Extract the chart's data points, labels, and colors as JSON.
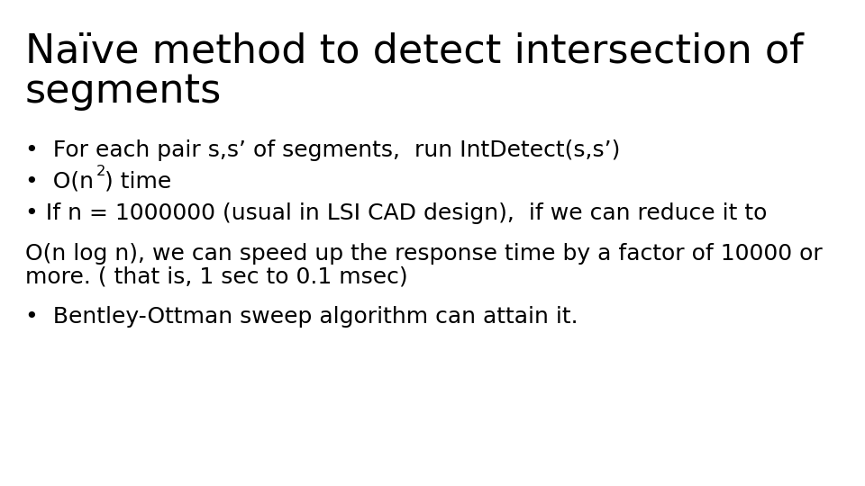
{
  "title_line1": "Naïve method to detect intersection of",
  "title_line2": "segments",
  "background_color": "#ffffff",
  "text_color": "#000000",
  "title_fontsize": 32,
  "body_fontsize": 18,
  "bullet1": "For each pair s,s’ of segments,  run IntDetect(s,s’)",
  "bullet2_pre": "•  O(n",
  "bullet2_super": "2",
  "bullet2_post": ") time",
  "bullet3": "• If n = 1000000 (usual in LSI CAD design),  if we can reduce it to",
  "para1_line1": "O(n log n), we can speed up the response time by a factor of 10000 or",
  "para1_line2": "more. ( that is, 1 sec to 0.1 msec)",
  "bullet4": "•  Bentley-Ottman sweep algorithm can attain it."
}
